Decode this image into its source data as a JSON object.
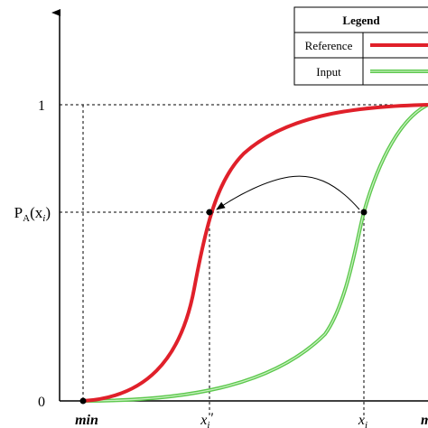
{
  "legend": {
    "title": "Legend",
    "entries": [
      "Reference",
      "Input"
    ]
  },
  "y_axis": {
    "top_label": "1",
    "bottom_label": "0",
    "level_label": {
      "main": "P",
      "sub": "A",
      "open": "(x",
      "arg_sub": "i",
      "close": ")"
    }
  },
  "x_axis": {
    "min_label": "min",
    "mapped_label": {
      "main": "x",
      "sub": "i",
      "prime": "'"
    },
    "input_label": {
      "main": "x",
      "sub": "i"
    },
    "max_label": "max"
  }
}
